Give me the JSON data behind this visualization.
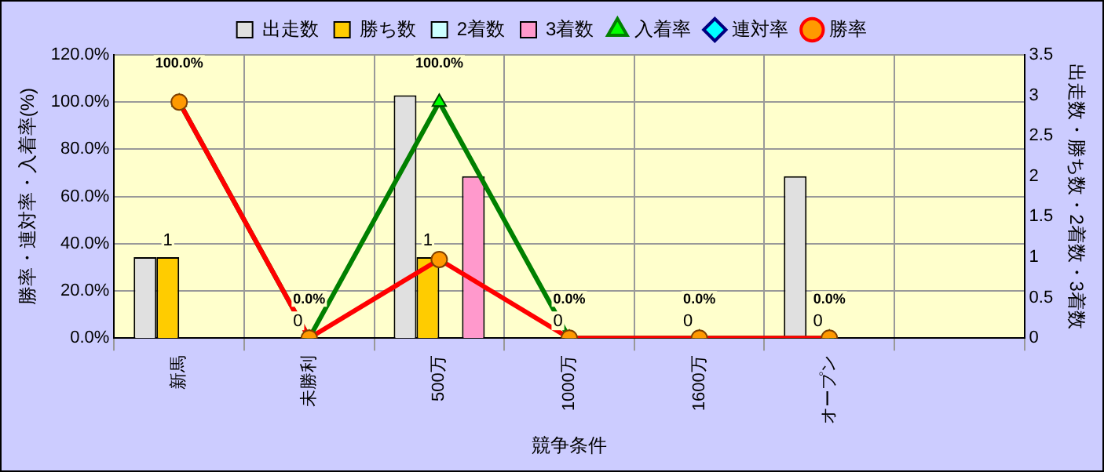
{
  "chart_data": {
    "type": "bar",
    "xlabel": "競争条件",
    "ylabel": "勝率・連対率・入着率(%)",
    "y2label": "出走数・勝ち数・2着数・3着数",
    "categories": [
      "新馬",
      "未勝利",
      "500万",
      "1000万",
      "1600万",
      "オープン",
      null
    ],
    "series": [
      {
        "name": "出走数",
        "axis": "y2",
        "color": "#e0e0e0",
        "values": [
          1,
          0,
          3,
          0,
          0,
          2,
          null
        ]
      },
      {
        "name": "勝ち数",
        "axis": "y2",
        "color": "#ffcc00",
        "values": [
          1,
          0,
          1,
          0,
          0,
          0,
          null
        ],
        "value_labels": [
          "1",
          "0",
          "1",
          "0",
          "0",
          "0",
          null
        ]
      },
      {
        "name": "2着数",
        "axis": "y2",
        "color": "#ccffff",
        "values": [
          0,
          0,
          0,
          0,
          0,
          0,
          null
        ]
      },
      {
        "name": "3着数",
        "axis": "y2",
        "color": "#ff99cc",
        "values": [
          0,
          0,
          2,
          0,
          0,
          0,
          null
        ]
      },
      {
        "name": "入着率",
        "type": "line",
        "axis": "y",
        "color": "#008000",
        "marker": "triangle",
        "values": [
          100,
          0,
          100,
          0,
          0,
          0,
          null
        ],
        "value_labels": [
          "100.0%",
          "0.0%",
          "100.0%",
          "0.0%",
          "0.0%",
          "0.0%",
          null
        ]
      },
      {
        "name": "連対率",
        "type": "line",
        "axis": "y",
        "color": "#000080",
        "marker": "diamond",
        "values": [
          null,
          null,
          null,
          null,
          null,
          null,
          null
        ]
      },
      {
        "name": "勝率",
        "type": "line",
        "axis": "y",
        "color": "#ff0000",
        "marker": "circle",
        "values": [
          100,
          0,
          33.3,
          0,
          0,
          0,
          null
        ]
      }
    ],
    "ylim": [
      0,
      120
    ],
    "yticks": [
      {
        "value": 0,
        "label": "0.0%"
      },
      {
        "value": 20,
        "label": "20.0%"
      },
      {
        "value": 40,
        "label": "40.0%"
      },
      {
        "value": 60,
        "label": "60.0%"
      },
      {
        "value": 80,
        "label": "80.0%"
      },
      {
        "value": 100,
        "label": "100.0%"
      },
      {
        "value": 120,
        "label": "120.0%"
      }
    ],
    "y2lim": [
      0,
      3.5
    ],
    "y2ticks": [
      0,
      0.5,
      1,
      1.5,
      2,
      2.5,
      3,
      3.5
    ],
    "grid": true,
    "legend": "top"
  }
}
